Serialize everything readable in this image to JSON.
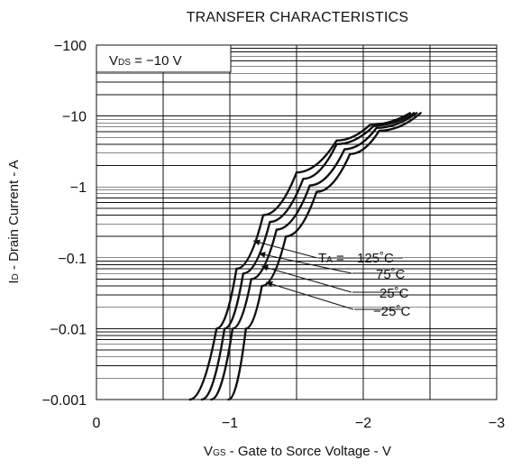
{
  "chart_data": {
    "type": "line",
    "title": "TRANSFER CHARACTERISTICS",
    "xlabel": {
      "main": "V",
      "subscript": "GS",
      "suffix": " - Gate to Sorce Voltage - V"
    },
    "ylabel": {
      "main": "I",
      "subscript": "D",
      "suffix": " - Drain Current - A"
    },
    "x_axis": {
      "min": 0,
      "max": -3,
      "ticks": [
        0,
        -1,
        -2,
        -3
      ],
      "tick_labels": [
        "0",
        "−1",
        "−2",
        "−3"
      ]
    },
    "y_axis": {
      "scale": "log",
      "min": -0.001,
      "max": -100,
      "ticks": [
        -100,
        -10,
        -1,
        -0.1,
        -0.01,
        -0.001
      ],
      "tick_labels": [
        "−100",
        "−10",
        "−1",
        "−0.1",
        "−0.01",
        "−0.001"
      ]
    },
    "grid": true,
    "condition_label": {
      "main": "V",
      "subscript": "DS",
      "suffix": " = −10 V"
    },
    "temperature_prefix": {
      "main": "T",
      "subscript": "A",
      "suffix": " = "
    },
    "series": [
      {
        "name": "125˚C",
        "values": [
          [
            -0.7,
            -0.001
          ],
          [
            -0.9,
            -0.01
          ],
          [
            -1.05,
            -0.07
          ],
          [
            -1.25,
            -0.4
          ],
          [
            -1.5,
            -1.6
          ],
          [
            -1.8,
            -4.5
          ],
          [
            -2.05,
            -7.5
          ],
          [
            -2.35,
            -11
          ]
        ]
      },
      {
        "name": "75˚C",
        "values": [
          [
            -0.79,
            -0.001
          ],
          [
            -0.96,
            -0.01
          ],
          [
            -1.1,
            -0.06
          ],
          [
            -1.3,
            -0.32
          ],
          [
            -1.55,
            -1.3
          ],
          [
            -1.8,
            -4.0
          ],
          [
            -2.08,
            -7.3
          ],
          [
            -2.38,
            -11
          ]
        ]
      },
      {
        "name": "25˚C",
        "values": [
          [
            -0.86,
            -0.001
          ],
          [
            -1.02,
            -0.01
          ],
          [
            -1.16,
            -0.05
          ],
          [
            -1.35,
            -0.25
          ],
          [
            -1.6,
            -1.05
          ],
          [
            -1.86,
            -3.4
          ],
          [
            -2.1,
            -6.8
          ],
          [
            -2.4,
            -11
          ]
        ]
      },
      {
        "name": "−25˚C",
        "values": [
          [
            -0.99,
            -0.001
          ],
          [
            -1.12,
            -0.01
          ],
          [
            -1.24,
            -0.04
          ],
          [
            -1.42,
            -0.2
          ],
          [
            -1.65,
            -0.85
          ],
          [
            -1.9,
            -2.9
          ],
          [
            -2.12,
            -6.2
          ],
          [
            -2.43,
            -11
          ]
        ]
      }
    ],
    "temperature_labels": [
      "125˚C",
      "75˚C",
      "25˚C",
      "−25˚C"
    ]
  }
}
